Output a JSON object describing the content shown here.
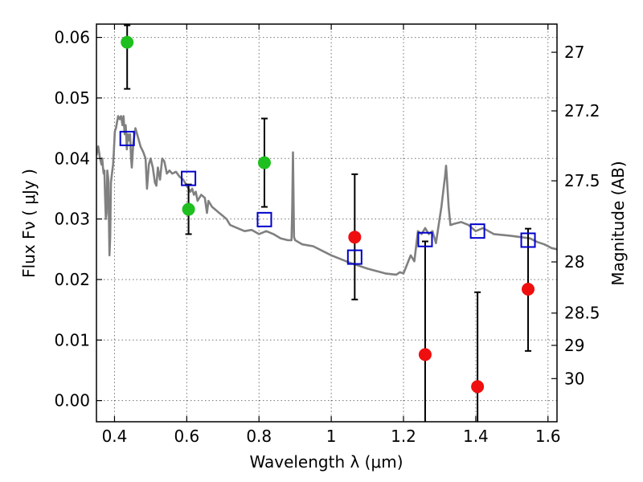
{
  "chart_data": {
    "type": "scatter",
    "title": "",
    "xlabel": "Wavelength  λ (μm)",
    "ylabel": "Flux  Fν  ( μJy )",
    "ylabel_right": "Magnitude (AB)",
    "xlim": [
      0.35,
      1.625
    ],
    "ylim": [
      -0.0035,
      0.0622
    ],
    "grid": true,
    "x_ticks": [
      {
        "value": 0.4,
        "label": "0.4"
      },
      {
        "value": 0.6,
        "label": "0.6"
      },
      {
        "value": 0.8,
        "label": "0.8"
      },
      {
        "value": 1.0,
        "label": "1"
      },
      {
        "value": 1.2,
        "label": "1.2"
      },
      {
        "value": 1.4,
        "label": "1.4"
      },
      {
        "value": 1.6,
        "label": "1.6"
      }
    ],
    "y_ticks": [
      {
        "value": 0.0,
        "label": "0.00"
      },
      {
        "value": 0.01,
        "label": "0.01"
      },
      {
        "value": 0.02,
        "label": "0.02"
      },
      {
        "value": 0.03,
        "label": "0.03"
      },
      {
        "value": 0.04,
        "label": "0.04"
      },
      {
        "value": 0.05,
        "label": "0.05"
      },
      {
        "value": 0.06,
        "label": "0.06"
      }
    ],
    "right_ticks": [
      {
        "mag": 27.0,
        "label": "27"
      },
      {
        "mag": 27.2,
        "label": "27.2"
      },
      {
        "mag": 27.5,
        "label": "27.5"
      },
      {
        "mag": 28.0,
        "label": "28"
      },
      {
        "mag": 28.5,
        "label": "28.5"
      },
      {
        "mag": 29.0,
        "label": "29"
      },
      {
        "mag": 30.0,
        "label": "30"
      }
    ],
    "colors": {
      "detected": "#1fbf1f",
      "upper": "#ef0f0f",
      "model": "#0000cc",
      "sed": "#808080",
      "errorbar": "#000000"
    },
    "series": [
      {
        "kind": "line",
        "role": "sed",
        "x": [
          0.35,
          0.355,
          0.36,
          0.362,
          0.364,
          0.366,
          0.368,
          0.37,
          0.372,
          0.374,
          0.376,
          0.378,
          0.38,
          0.383,
          0.386,
          0.388,
          0.39,
          0.393,
          0.396,
          0.398,
          0.401,
          0.404,
          0.407,
          0.41,
          0.414,
          0.418,
          0.422,
          0.425,
          0.428,
          0.431,
          0.434,
          0.437,
          0.44,
          0.443,
          0.446,
          0.448,
          0.452,
          0.458,
          0.465,
          0.472,
          0.48,
          0.486,
          0.49,
          0.495,
          0.5,
          0.506,
          0.512,
          0.516,
          0.52,
          0.526,
          0.532,
          0.538,
          0.545,
          0.552,
          0.56,
          0.57,
          0.58,
          0.59,
          0.6,
          0.605,
          0.61,
          0.615,
          0.62,
          0.625,
          0.63,
          0.64,
          0.65,
          0.656,
          0.66,
          0.67,
          0.68,
          0.69,
          0.7,
          0.71,
          0.72,
          0.74,
          0.76,
          0.78,
          0.8,
          0.82,
          0.84,
          0.86,
          0.88,
          0.89,
          0.892,
          0.894,
          0.897,
          0.9,
          0.92,
          0.95,
          1.0,
          1.05,
          1.1,
          1.15,
          1.18,
          1.19,
          1.2,
          1.21,
          1.22,
          1.23,
          1.24,
          1.25,
          1.26,
          1.27,
          1.28,
          1.29,
          1.3,
          1.305,
          1.31,
          1.315,
          1.318,
          1.32,
          1.325,
          1.33,
          1.34,
          1.36,
          1.38,
          1.4,
          1.42,
          1.45,
          1.5,
          1.55,
          1.57,
          1.59,
          1.6,
          1.61,
          1.625
        ],
        "y": [
          0.0405,
          0.042,
          0.04,
          0.0395,
          0.039,
          0.04,
          0.0385,
          0.0375,
          0.038,
          0.0335,
          0.03,
          0.031,
          0.038,
          0.0365,
          0.024,
          0.027,
          0.036,
          0.0375,
          0.039,
          0.041,
          0.0445,
          0.045,
          0.046,
          0.047,
          0.0465,
          0.047,
          0.0455,
          0.047,
          0.044,
          0.0455,
          0.0415,
          0.044,
          0.043,
          0.044,
          0.04,
          0.0385,
          0.0425,
          0.045,
          0.0435,
          0.042,
          0.041,
          0.04,
          0.035,
          0.039,
          0.04,
          0.0385,
          0.036,
          0.0355,
          0.0385,
          0.0365,
          0.04,
          0.0395,
          0.0375,
          0.038,
          0.0375,
          0.0378,
          0.037,
          0.0365,
          0.0355,
          0.035,
          0.0345,
          0.035,
          0.034,
          0.0345,
          0.033,
          0.034,
          0.0335,
          0.031,
          0.033,
          0.032,
          0.0315,
          0.031,
          0.0305,
          0.03,
          0.029,
          0.0285,
          0.028,
          0.0282,
          0.0275,
          0.028,
          0.0275,
          0.0268,
          0.0265,
          0.0265,
          0.032,
          0.041,
          0.027,
          0.0265,
          0.0258,
          0.0255,
          0.024,
          0.0228,
          0.0218,
          0.021,
          0.0208,
          0.0212,
          0.021,
          0.0225,
          0.024,
          0.023,
          0.028,
          0.0275,
          0.0285,
          0.0275,
          0.028,
          0.026,
          0.03,
          0.032,
          0.0345,
          0.037,
          0.0388,
          0.037,
          0.032,
          0.029,
          0.0292,
          0.0295,
          0.029,
          0.028,
          0.0285,
          0.0275,
          0.0272,
          0.0268,
          0.0262,
          0.0258,
          0.0255,
          0.0252,
          0.025
        ]
      },
      {
        "kind": "points",
        "role": "model",
        "marker": "open-square",
        "x": [
          0.435,
          0.605,
          0.815,
          1.065,
          1.26,
          1.405,
          1.545
        ],
        "y": [
          0.0433,
          0.0367,
          0.0299,
          0.0237,
          0.0266,
          0.028,
          0.0265
        ]
      },
      {
        "kind": "points",
        "role": "detected",
        "marker": "filled-circle",
        "x": [
          0.435,
          0.605,
          0.815
        ],
        "y": [
          0.0592,
          0.0316,
          0.0393
        ],
        "yerr": [
          [
            0.0515,
            0.062
          ],
          [
            0.0275,
            0.0357
          ],
          [
            0.032,
            0.0466
          ]
        ]
      },
      {
        "kind": "points",
        "role": "upper",
        "marker": "filled-circle",
        "x": [
          1.065,
          1.26,
          1.405,
          1.545
        ],
        "y": [
          0.027,
          0.0076,
          0.0023,
          0.0184
        ],
        "yerr": [
          [
            0.0167,
            0.0374
          ],
          [
            -0.0035,
            0.0263
          ],
          [
            -0.0035,
            0.0179
          ],
          [
            0.0082,
            0.0284
          ]
        ]
      }
    ]
  }
}
